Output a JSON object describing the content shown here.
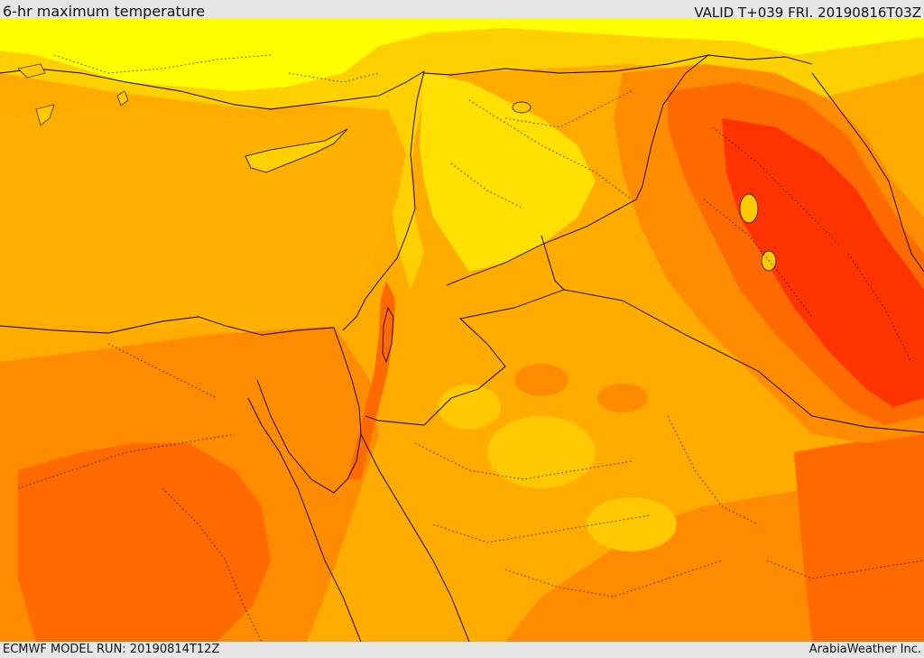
{
  "header": {
    "title": "6-hr maximum temperature",
    "valid_time": "VALID T+039 FRI. 20190816T03Z"
  },
  "footer": {
    "model_run": "ECMWF MODEL RUN: 20190814T12Z",
    "credit": "ArabiaWeather Inc."
  },
  "map": {
    "region": "Eastern Mediterranean, Levant, Iraq, Egypt, northern Saudi Arabia",
    "field": "6-hr maximum temperature",
    "palette": {
      "coolest": "#ffff00",
      "cool": "#ffe000",
      "mild": "#ffc800",
      "warm": "#ffab00",
      "hot": "#ff8c00",
      "hotter": "#ff6a00",
      "hottest": "#ff3300",
      "extreme": "#ff1a00"
    },
    "boundaries": {
      "coastline_color": "#000000",
      "border_style": "dotted"
    }
  }
}
